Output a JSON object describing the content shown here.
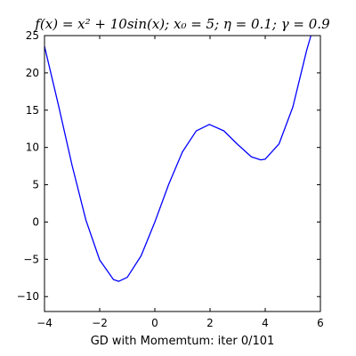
{
  "chart_data": {
    "type": "line",
    "title": "f(x) = x² + 10sin(x); x₀ = 5; η = 0.1; γ = 0.9",
    "xlabel": "GD with Momemtum: iter 0/101",
    "ylabel": "",
    "xlim": [
      -4,
      6
    ],
    "ylim": [
      -12,
      25
    ],
    "xticks": [
      -4,
      -2,
      0,
      2,
      4,
      6
    ],
    "yticks": [
      -10,
      -5,
      0,
      5,
      10,
      15,
      20,
      25
    ],
    "xtick_labels": [
      "−4",
      "−2",
      "0",
      "2",
      "4",
      "6"
    ],
    "ytick_labels": [
      "−10",
      "−5",
      "0",
      "5",
      "10",
      "15",
      "20",
      "25"
    ],
    "grid": false,
    "series": [
      {
        "color": "#0000ff",
        "x": [
          -4.0,
          -3.5,
          -3.0,
          -2.5,
          -2.0,
          -1.5,
          -1.306,
          -1.0,
          -0.5,
          0.0,
          0.5,
          1.0,
          1.5,
          1.976,
          2.5,
          3.0,
          3.5,
          3.837,
          4.0,
          4.5,
          5.0,
          5.5,
          5.656
        ],
        "y": [
          23.57,
          15.76,
          7.59,
          0.27,
          -5.09,
          -7.72,
          -7.95,
          -7.41,
          -4.54,
          0.0,
          5.04,
          9.41,
          12.22,
          13.09,
          12.23,
          10.41,
          8.74,
          8.33,
          8.43,
          10.47,
          15.41,
          22.99,
          25.0
        ]
      }
    ]
  }
}
